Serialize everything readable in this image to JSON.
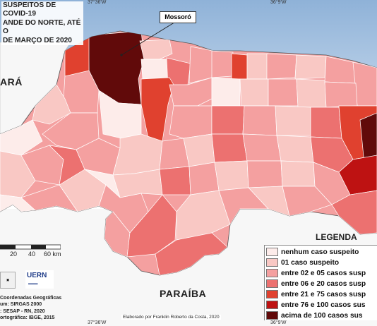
{
  "title_lines": [
    "SUSPEITOS DE COVID-19",
    "ANDE DO NORTE, ATÉ O",
    "DE MARÇO DE 2020"
  ],
  "coordinates": {
    "top_left": "37°36'W",
    "top_right": "36°9'W",
    "bottom_left": "37°36'W",
    "bottom_right": "36°9'W"
  },
  "callout": "Mossoró",
  "state_labels": {
    "west": "ARÁ",
    "south": "PARAÍBA"
  },
  "legend": {
    "title": "LEGENDA",
    "items": [
      {
        "label": "nenhum caso suspeito",
        "color": "#fdecea"
      },
      {
        "label": "01 caso suspeito",
        "color": "#f9c8c4"
      },
      {
        "label": "entre 02 e 05 casos susp",
        "color": "#f4a0a0"
      },
      {
        "label": "entre 06 e 20 casos susp",
        "color": "#ec7170"
      },
      {
        "label": "entre 21 e 75 casos susp",
        "color": "#e0412f"
      },
      {
        "label": "entre 76 e 100 casos sus",
        "color": "#be1212"
      },
      {
        "label": "acima de 100 casos sus",
        "color": "#610a0a"
      }
    ]
  },
  "scale": {
    "ticks": [
      "20",
      "40",
      "60 km"
    ]
  },
  "footer_lines": [
    "Coordenadas Geográficas",
    "um: SIRGAS 2000",
    ": SESAP - RN, 2020",
    "ortográfica: IBGE, 2015"
  ],
  "credit": "Elaborado por Franklin Roberto da Costa, 2020",
  "logos": {
    "uern": "UERN"
  }
}
